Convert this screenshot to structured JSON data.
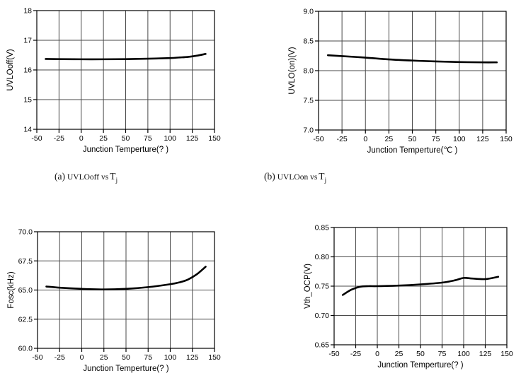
{
  "page": {
    "background": "#ffffff",
    "grid_color": "#4a4a4a",
    "axis_color": "#000000"
  },
  "chart_data": [
    {
      "type": "line",
      "name": "uvlo-off-vs-tj",
      "xlabel": "Junction Temperture(?  )",
      "ylabel": "UVLOoff(V)",
      "xlim": [
        -50,
        150
      ],
      "ylim": [
        14,
        18
      ],
      "grid": true,
      "line_color": "#000000",
      "x_ticks": {
        "values": [
          -50,
          -25,
          0,
          25,
          50,
          75,
          100,
          125,
          150
        ],
        "labels": [
          "-50",
          "-25",
          "0",
          "25",
          "50",
          "75",
          "100",
          "125",
          "150"
        ]
      },
      "y_ticks": {
        "values": [
          14,
          15,
          16,
          17,
          18
        ],
        "labels": [
          "14",
          "15",
          "16",
          "17",
          "18"
        ]
      },
      "series": [
        {
          "name": "UVLOoff",
          "x": [
            -40,
            -25,
            0,
            25,
            50,
            75,
            100,
            110,
            120,
            130,
            140
          ],
          "y": [
            16.37,
            16.365,
            16.36,
            16.36,
            16.365,
            16.38,
            16.4,
            16.42,
            16.44,
            16.48,
            16.54
          ]
        }
      ],
      "caption": {
        "index": "(a)",
        "body": "UVLOoff vs",
        "symbol": "T",
        "subscript": "j"
      }
    },
    {
      "type": "line",
      "name": "uvlo-on-vs-tj",
      "xlabel": "Junction Temperture(℃ )",
      "ylabel": "UVLO(on)(V)",
      "xlim": [
        -50,
        150
      ],
      "ylim": [
        7.0,
        9.0
      ],
      "grid": true,
      "line_color": "#000000",
      "x_ticks": {
        "values": [
          -50,
          -25,
          0,
          25,
          50,
          75,
          100,
          125,
          150
        ],
        "labels": [
          "-50",
          "-25",
          "0",
          "25",
          "50",
          "75",
          "100",
          "125",
          "150"
        ]
      },
      "y_ticks": {
        "values": [
          7.0,
          7.5,
          8.0,
          8.5,
          9.0
        ],
        "labels": [
          "7.0",
          "7.5",
          "8.0",
          "8.5",
          "9.0"
        ]
      },
      "series": [
        {
          "name": "UVLO(on)",
          "x": [
            -40,
            -25,
            0,
            25,
            50,
            75,
            100,
            125,
            140
          ],
          "y": [
            8.26,
            8.245,
            8.22,
            8.19,
            8.17,
            8.155,
            8.145,
            8.14,
            8.14
          ]
        }
      ],
      "caption": {
        "index": "(b)",
        "body": "UVLOon vs",
        "symbol": "T",
        "subscript": "j"
      }
    },
    {
      "type": "line",
      "name": "fosc-vs-tj",
      "xlabel": "Junction Temperture(?  )",
      "ylabel": "Fosc(kHz)",
      "xlim": [
        -50,
        150
      ],
      "ylim": [
        60.0,
        70.0
      ],
      "grid": true,
      "line_color": "#000000",
      "x_ticks": {
        "values": [
          -50,
          -25,
          0,
          25,
          50,
          75,
          100,
          125,
          150
        ],
        "labels": [
          "-50",
          "-25",
          "0",
          "25",
          "50",
          "75",
          "100",
          "125",
          "150"
        ]
      },
      "y_ticks": {
        "values": [
          60.0,
          62.5,
          65.0,
          67.5,
          70.0
        ],
        "labels": [
          "60.0",
          "62.5",
          "65.0",
          "67.5",
          "70.0"
        ]
      },
      "series": [
        {
          "name": "Fosc",
          "x": [
            -40,
            -25,
            0,
            25,
            50,
            75,
            100,
            110,
            120,
            130,
            140
          ],
          "y": [
            65.3,
            65.2,
            65.1,
            65.05,
            65.1,
            65.25,
            65.5,
            65.65,
            65.9,
            66.35,
            67.0
          ]
        }
      ]
    },
    {
      "type": "line",
      "name": "vth-ocp-vs-tj",
      "xlabel": "Junction Temperture(?  )",
      "ylabel": "Vth_OCP(V)",
      "xlim": [
        -50,
        150
      ],
      "ylim": [
        0.65,
        0.85
      ],
      "grid": true,
      "line_color": "#000000",
      "x_ticks": {
        "values": [
          -50,
          -25,
          0,
          25,
          50,
          75,
          100,
          125,
          150
        ],
        "labels": [
          "-50",
          "-25",
          "0",
          "25",
          "50",
          "75",
          "100",
          "125",
          "150"
        ]
      },
      "y_ticks": {
        "values": [
          0.65,
          0.7,
          0.75,
          0.8,
          0.85
        ],
        "labels": [
          "0.65",
          "0.70",
          "0.75",
          "0.80",
          "0.85"
        ]
      },
      "series": [
        {
          "name": "Vth_OCP",
          "x": [
            -40,
            -30,
            -20,
            -10,
            0,
            25,
            50,
            75,
            90,
            100,
            110,
            125,
            140
          ],
          "y": [
            0.735,
            0.744,
            0.749,
            0.75,
            0.75,
            0.751,
            0.753,
            0.756,
            0.76,
            0.764,
            0.763,
            0.762,
            0.766
          ]
        }
      ]
    }
  ]
}
